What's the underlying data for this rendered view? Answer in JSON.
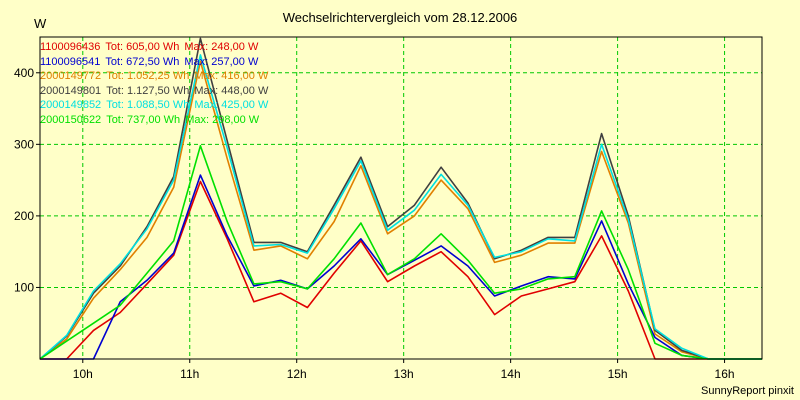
{
  "chart_data": {
    "type": "line",
    "title": "Wechselrichtervergleich vom 28.12.2006",
    "ylabel": "W",
    "footer": "SunnyReport pinxit",
    "x_ticks": [
      "10h",
      "11h",
      "12h",
      "13h",
      "14h",
      "15h",
      "16h"
    ],
    "x_tick_hours": [
      10,
      11,
      12,
      13,
      14,
      15,
      16
    ],
    "xlim_hours": [
      9.6,
      16.35
    ],
    "y_ticks": [
      "100",
      "200",
      "300",
      "400"
    ],
    "y_tick_values": [
      100,
      200,
      300,
      400
    ],
    "ylim": [
      0,
      450
    ],
    "grid": true,
    "legend_position": "top-left",
    "x_hours": [
      9.6,
      9.85,
      10.1,
      10.35,
      10.6,
      10.85,
      11.1,
      11.35,
      11.6,
      11.85,
      12.1,
      12.35,
      12.6,
      12.85,
      13.1,
      13.35,
      13.6,
      13.85,
      14.1,
      14.35,
      14.6,
      14.85,
      15.1,
      15.35,
      15.6,
      15.85,
      16.1,
      16.35
    ],
    "series": [
      {
        "serial": "1100096436",
        "tot": "Tot: 605,00 Wh",
        "max": "Max: 248,00 W",
        "color": "#e00000",
        "values": [
          0,
          0,
          40,
          65,
          105,
          145,
          248,
          168,
          80,
          92,
          72,
          120,
          165,
          108,
          130,
          150,
          115,
          62,
          88,
          98,
          108,
          172,
          95,
          0,
          0,
          0,
          0,
          0
        ]
      },
      {
        "serial": "1100096541",
        "tot": "Tot: 672,50 Wh",
        "max": "Max: 257,00 W",
        "color": "#0000d0",
        "values": [
          0,
          0,
          0,
          80,
          110,
          148,
          257,
          172,
          102,
          110,
          98,
          130,
          168,
          118,
          138,
          158,
          130,
          88,
          102,
          115,
          112,
          193,
          105,
          30,
          5,
          0,
          0,
          0
        ]
      },
      {
        "serial": "2000149772",
        "tot": "Tot: 1.052,25 Wh",
        "max": "Max: 416,00 W",
        "color": "#e08000",
        "values": [
          0,
          28,
          85,
          125,
          170,
          240,
          416,
          280,
          152,
          158,
          140,
          192,
          270,
          175,
          200,
          250,
          210,
          135,
          145,
          162,
          162,
          290,
          190,
          35,
          10,
          0,
          0,
          0
        ]
      },
      {
        "serial": "2000149801",
        "tot": "Tot: 1.127,50 Wh",
        "max": "Max: 448,00 W",
        "color": "#404040",
        "values": [
          0,
          32,
          92,
          130,
          185,
          255,
          448,
          305,
          163,
          163,
          150,
          215,
          282,
          185,
          215,
          268,
          218,
          140,
          152,
          170,
          170,
          315,
          200,
          40,
          12,
          0,
          0,
          0
        ]
      },
      {
        "serial": "2000149852",
        "tot": "Tot: 1.088,50 Wh",
        "max": "Max: 425,00 W",
        "color": "#00e0e0",
        "values": [
          0,
          33,
          95,
          133,
          182,
          250,
          425,
          295,
          158,
          160,
          148,
          210,
          277,
          180,
          208,
          258,
          215,
          142,
          150,
          168,
          165,
          300,
          195,
          42,
          15,
          0,
          0,
          0
        ]
      },
      {
        "serial": "2000150622",
        "tot": "Tot: 737,00 Wh",
        "max": "Max: 298,00 W",
        "color": "#00e000",
        "values": [
          0,
          25,
          50,
          75,
          120,
          165,
          298,
          192,
          105,
          108,
          98,
          140,
          190,
          118,
          140,
          175,
          138,
          92,
          98,
          112,
          115,
          207,
          125,
          22,
          5,
          0,
          0,
          0
        ]
      }
    ]
  }
}
